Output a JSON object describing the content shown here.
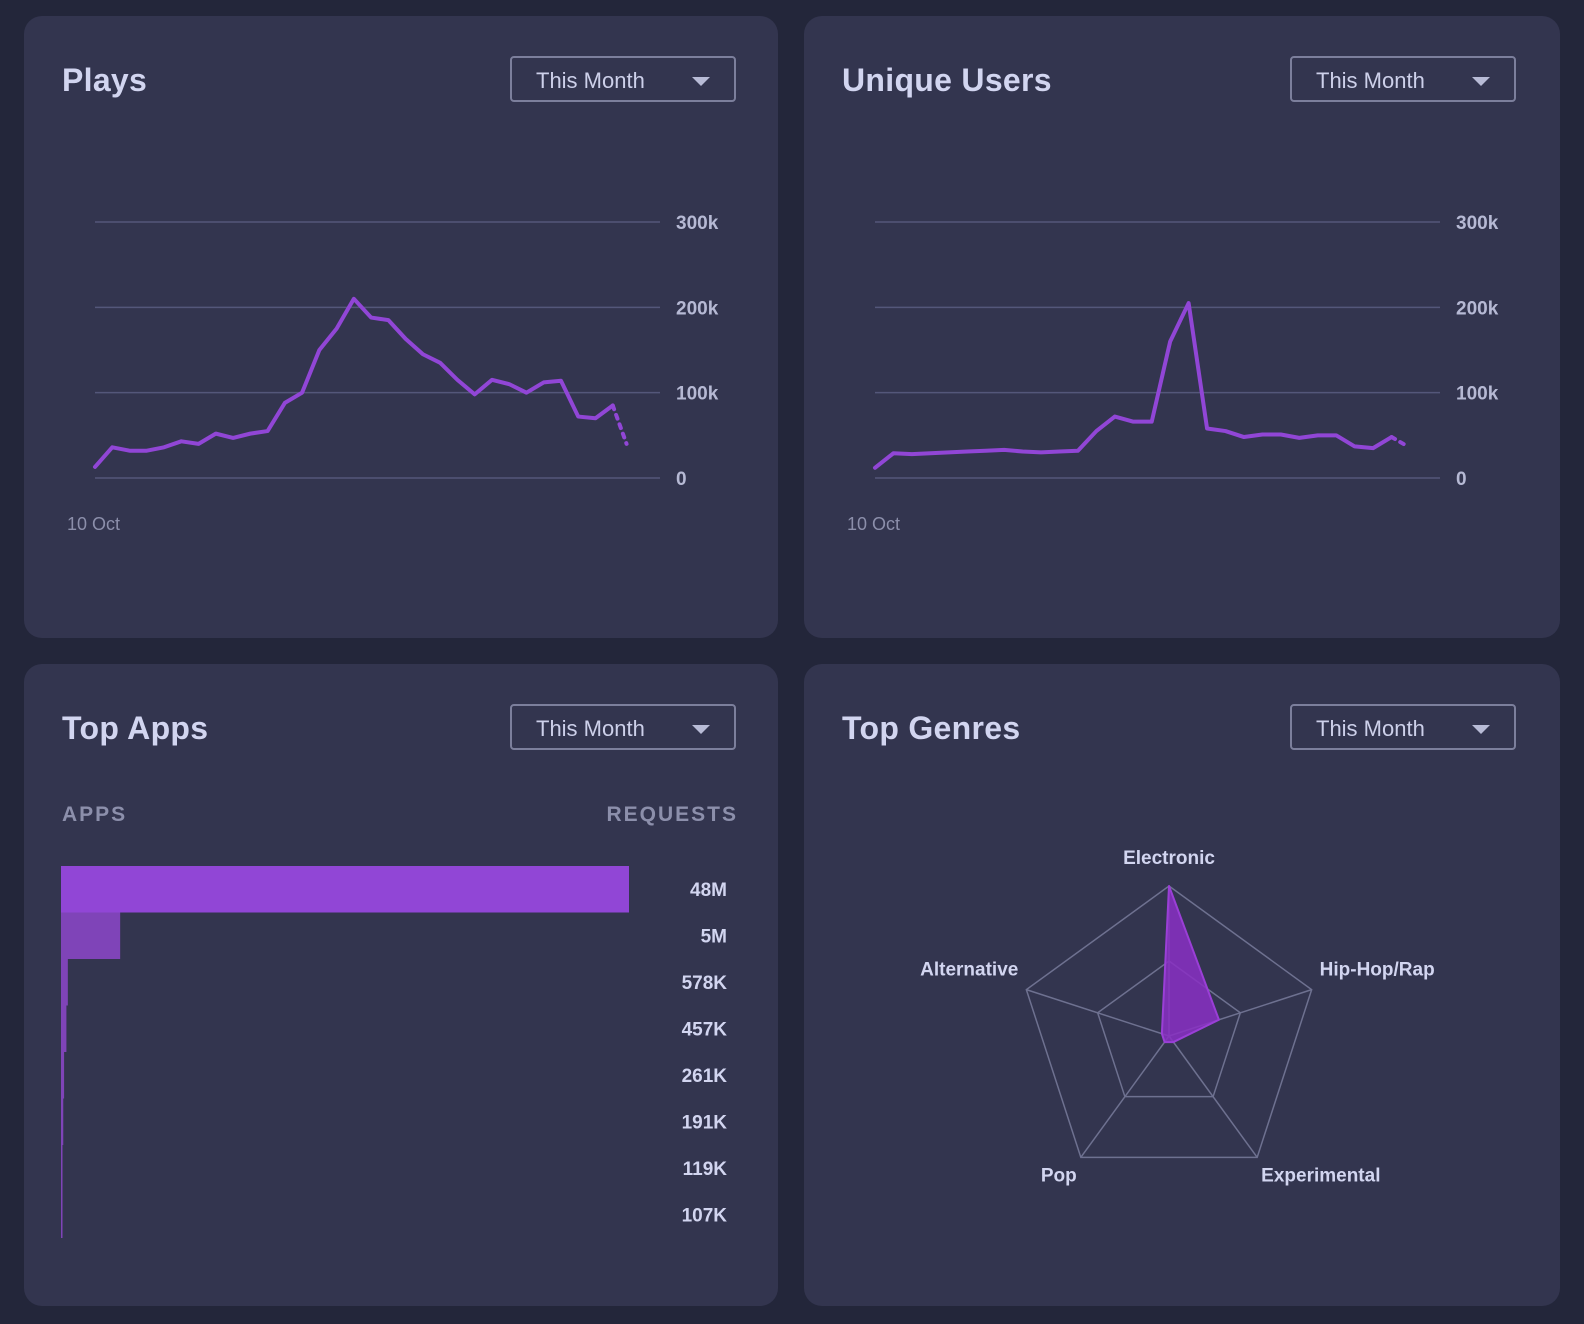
{
  "colors": {
    "background": "#23263a",
    "card": "#33354f",
    "accent": "#9146d6",
    "accent_secondary": "#7f44b8",
    "gridline": "#54577a"
  },
  "dropdown_icon": "chevron-down-icon",
  "plays": {
    "title": "Plays",
    "range": "This Month",
    "chart_data": {
      "type": "line",
      "y_ticks": [
        "300k",
        "200k",
        "100k",
        "0"
      ],
      "ylim": [
        0,
        300000
      ],
      "x_tick_label": "10 Oct",
      "grid": true,
      "values": [
        13000,
        36000,
        32000,
        32000,
        36000,
        43000,
        40000,
        52000,
        47000,
        52000,
        55000,
        88000,
        100000,
        150000,
        175000,
        210000,
        188000,
        185000,
        163000,
        145000,
        135000,
        115000,
        98000,
        115000,
        110000,
        100000,
        112000,
        114000,
        72000,
        70000,
        85000
      ],
      "projected_values": [
        85000,
        40000
      ]
    }
  },
  "users": {
    "title": "Unique Users",
    "range": "This Month",
    "chart_data": {
      "type": "line",
      "y_ticks": [
        "300k",
        "200k",
        "100k",
        "0"
      ],
      "ylim": [
        0,
        300000
      ],
      "x_tick_label": "10 Oct",
      "grid": true,
      "values": [
        12000,
        29000,
        28000,
        29000,
        30000,
        31000,
        32000,
        33000,
        31000,
        30000,
        31000,
        32000,
        55000,
        72000,
        66000,
        66000,
        160000,
        205000,
        58000,
        55000,
        48000,
        51000,
        51000,
        47000,
        50000,
        50000,
        37000,
        35000,
        48000
      ],
      "projected_values": [
        48000,
        38000
      ]
    }
  },
  "apps": {
    "title": "Top Apps",
    "range": "This Month",
    "col_apps": "APPS",
    "col_requests": "REQUESTS",
    "chart_data": {
      "type": "bar",
      "orientation": "horizontal",
      "values": [
        48000000,
        5000000,
        578000,
        457000,
        261000,
        191000,
        119000,
        107000
      ],
      "labels": [
        "48M",
        "5M",
        "578K",
        "457K",
        "261K",
        "191K",
        "119K",
        "107K"
      ]
    }
  },
  "genres": {
    "title": "Top Genres",
    "range": "This Month",
    "chart_data": {
      "type": "radar",
      "axes": [
        "Electronic",
        "Hip-Hop/Rap",
        "Experimental",
        "Pop",
        "Alternative"
      ],
      "values": [
        1.0,
        0.35,
        0.05,
        0.05,
        0.05
      ],
      "rings": 2
    }
  }
}
